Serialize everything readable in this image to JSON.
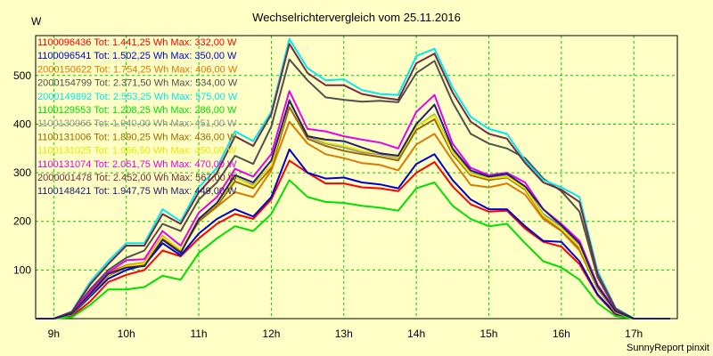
{
  "chart_data": {
    "type": "line",
    "title": "Wechselrichtervergleich vom 25.11.2016",
    "ylabel": "W",
    "xlabel": "",
    "footer": "SunnyReport pinxit",
    "x_ticks": [
      "9h",
      "10h",
      "11h",
      "12h",
      "13h",
      "14h",
      "15h",
      "16h",
      "17h"
    ],
    "x_range_hours": [
      8.75,
      17.6
    ],
    "y_ticks": [
      100,
      200,
      300,
      400,
      500
    ],
    "ylim": [
      0,
      582
    ],
    "grid": true,
    "legend_position": "top-left",
    "x": [
      "08:45",
      "09:00",
      "09:15",
      "09:30",
      "09:45",
      "10:00",
      "10:15",
      "10:30",
      "10:45",
      "11:00",
      "11:15",
      "11:30",
      "11:45",
      "12:00",
      "12:15",
      "12:30",
      "12:45",
      "13:00",
      "13:15",
      "13:30",
      "13:45",
      "14:00",
      "14:15",
      "14:30",
      "14:45",
      "15:00",
      "15:15",
      "15:30",
      "15:45",
      "16:00",
      "16:15",
      "16:30",
      "16:45",
      "17:00",
      "17:15",
      "17:30"
    ],
    "series": [
      {
        "name": "1100096436 Tot: 1.441,25 Wh Max: 332,00 W",
        "color": "#ff0000",
        "values": [
          0,
          0,
          5,
          35,
          75,
          90,
          100,
          140,
          128,
          165,
          195,
          215,
          205,
          245,
          325,
          300,
          278,
          278,
          270,
          268,
          262,
          300,
          322,
          272,
          235,
          220,
          222,
          185,
          158,
          148,
          112,
          48,
          8,
          0,
          0,
          0
        ]
      },
      {
        "name": "1100096541 Tot: 1.502,25 Wh Max: 350,00 W",
        "color": "#0000cc",
        "values": [
          0,
          0,
          8,
          45,
          82,
          100,
          110,
          155,
          130,
          175,
          205,
          225,
          210,
          250,
          348,
          300,
          288,
          290,
          280,
          276,
          268,
          318,
          338,
          285,
          245,
          225,
          225,
          190,
          160,
          158,
          118,
          50,
          10,
          0,
          0,
          0
        ]
      },
      {
        "name": "2000150622 Tot: 1.754,25 Wh Max: 406,00 W",
        "color": "#e07800",
        "values": [
          0,
          0,
          10,
          52,
          95,
          110,
          115,
          170,
          140,
          200,
          230,
          260,
          250,
          305,
          405,
          360,
          338,
          330,
          320,
          316,
          305,
          358,
          380,
          325,
          275,
          270,
          278,
          255,
          205,
          180,
          140,
          62,
          12,
          0,
          0,
          0
        ]
      },
      {
        "name": "2000154799 Tot: 2.371,50 Wh Max: 534,00 W",
        "color": "#505050",
        "values": [
          0,
          0,
          12,
          60,
          100,
          125,
          140,
          195,
          180,
          245,
          280,
          335,
          318,
          395,
          533,
          490,
          455,
          450,
          446,
          448,
          445,
          505,
          530,
          445,
          380,
          360,
          350,
          330,
          288,
          262,
          220,
          85,
          18,
          0,
          0,
          0
        ]
      },
      {
        "name": "2000149892 Tot: 2.553,25 Wh Max: 575,00 W",
        "color": "#00e8f0",
        "values": [
          0,
          0,
          15,
          75,
          118,
          155,
          155,
          225,
          200,
          270,
          310,
          385,
          365,
          425,
          575,
          515,
          490,
          492,
          470,
          462,
          460,
          540,
          555,
          475,
          415,
          390,
          380,
          325,
          285,
          270,
          250,
          98,
          22,
          0,
          0,
          0
        ]
      },
      {
        "name": "1100129553 Tot: 1.208,25 Wh Max: 286,00 W",
        "color": "#00e000",
        "values": [
          0,
          0,
          3,
          28,
          60,
          60,
          65,
          88,
          80,
          135,
          165,
          190,
          180,
          215,
          285,
          250,
          240,
          238,
          232,
          228,
          222,
          268,
          280,
          232,
          205,
          190,
          195,
          155,
          118,
          105,
          80,
          32,
          5,
          0,
          0,
          0
        ]
      },
      {
        "name": "1100130966 Tot: 1.940,00 Wh Max: 451,00 W",
        "color": "#909090",
        "values": [
          0,
          0,
          10,
          50,
          90,
          108,
          112,
          168,
          140,
          205,
          238,
          290,
          275,
          315,
          450,
          375,
          360,
          352,
          342,
          338,
          330,
          395,
          420,
          345,
          300,
          290,
          295,
          270,
          215,
          190,
          150,
          65,
          15,
          0,
          0,
          0
        ]
      },
      {
        "name": "1100131006 Tot: 1.890,25 Wh Max: 436,00 W",
        "color": "#a06800",
        "values": [
          0,
          0,
          9,
          48,
          88,
          105,
          110,
          165,
          138,
          200,
          232,
          282,
          268,
          310,
          435,
          370,
          355,
          345,
          338,
          333,
          325,
          388,
          410,
          338,
          295,
          285,
          290,
          265,
          210,
          182,
          145,
          62,
          14,
          0,
          0,
          0
        ]
      },
      {
        "name": "1100131025 Tot: 1.966,50 Wh Max: 450,00 W",
        "color": "#e8e800",
        "values": [
          0,
          0,
          9,
          50,
          90,
          108,
          113,
          168,
          142,
          205,
          236,
          290,
          272,
          315,
          448,
          378,
          362,
          355,
          345,
          340,
          332,
          395,
          418,
          342,
          298,
          288,
          292,
          268,
          212,
          185,
          148,
          64,
          14,
          0,
          0,
          0
        ]
      },
      {
        "name": "1100131074 Tot: 2.051,75 Wh Max: 470,00 W",
        "color": "#e800e8",
        "values": [
          0,
          0,
          12,
          55,
          95,
          120,
          122,
          180,
          150,
          218,
          250,
          308,
          292,
          338,
          468,
          390,
          385,
          375,
          368,
          362,
          350,
          425,
          460,
          360,
          310,
          295,
          300,
          280,
          225,
          195,
          160,
          70,
          16,
          0,
          0,
          0
        ]
      },
      {
        "name": "2000001478 Tot: 2.452,00 Wh Max: 567,00 W",
        "color": "#7a2840",
        "values": [
          0,
          0,
          14,
          70,
          112,
          150,
          150,
          215,
          195,
          260,
          300,
          375,
          355,
          420,
          565,
          505,
          480,
          480,
          462,
          455,
          450,
          525,
          545,
          465,
          405,
          380,
          370,
          320,
          280,
          265,
          240,
          92,
          20,
          0,
          0,
          0
        ]
      },
      {
        "name": "1100148421 Tot: 1.947,75 Wh Max: 449,00 W",
        "color": "#202070",
        "values": [
          0,
          0,
          10,
          50,
          92,
          105,
          108,
          162,
          135,
          205,
          238,
          295,
          280,
          325,
          448,
          375,
          368,
          365,
          352,
          340,
          335,
          400,
          440,
          350,
          305,
          292,
          298,
          272,
          225,
          192,
          155,
          66,
          15,
          0,
          0,
          0
        ]
      }
    ]
  }
}
